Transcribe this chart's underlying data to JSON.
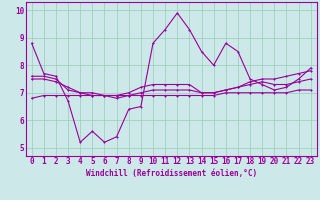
{
  "xlabel": "Windchill (Refroidissement éolien,°C)",
  "background_color": "#cce8e8",
  "line_color": "#990099",
  "grid_color": "#99ccbb",
  "xlim": [
    -0.5,
    23.5
  ],
  "ylim": [
    4.7,
    10.3
  ],
  "xticks": [
    0,
    1,
    2,
    3,
    4,
    5,
    6,
    7,
    8,
    9,
    10,
    11,
    12,
    13,
    14,
    15,
    16,
    17,
    18,
    19,
    20,
    21,
    22,
    23
  ],
  "yticks": [
    5,
    6,
    7,
    8,
    9,
    10
  ],
  "series": [
    [
      8.8,
      7.7,
      7.6,
      6.7,
      5.2,
      5.6,
      5.2,
      5.4,
      6.4,
      6.5,
      8.8,
      9.3,
      9.9,
      9.3,
      8.5,
      8.0,
      8.8,
      8.5,
      7.5,
      7.3,
      7.1,
      7.2,
      7.5,
      7.9
    ],
    [
      7.6,
      7.6,
      7.5,
      7.1,
      7.0,
      7.0,
      6.9,
      6.9,
      7.0,
      7.2,
      7.3,
      7.3,
      7.3,
      7.3,
      7.0,
      7.0,
      7.1,
      7.2,
      7.4,
      7.5,
      7.5,
      7.6,
      7.7,
      7.8
    ],
    [
      6.8,
      6.9,
      6.9,
      6.9,
      6.9,
      6.9,
      6.9,
      6.9,
      6.9,
      6.9,
      6.9,
      6.9,
      6.9,
      6.9,
      6.9,
      6.9,
      7.0,
      7.0,
      7.0,
      7.0,
      7.0,
      7.0,
      7.1,
      7.1
    ],
    [
      7.5,
      7.5,
      7.4,
      7.2,
      7.0,
      6.9,
      6.9,
      6.8,
      6.9,
      7.0,
      7.1,
      7.1,
      7.1,
      7.1,
      7.0,
      7.0,
      7.1,
      7.2,
      7.3,
      7.4,
      7.3,
      7.3,
      7.4,
      7.5
    ]
  ],
  "tick_fontsize": 5.5,
  "xlabel_fontsize": 5.5,
  "marker_size": 2.0,
  "line_width": 0.8
}
